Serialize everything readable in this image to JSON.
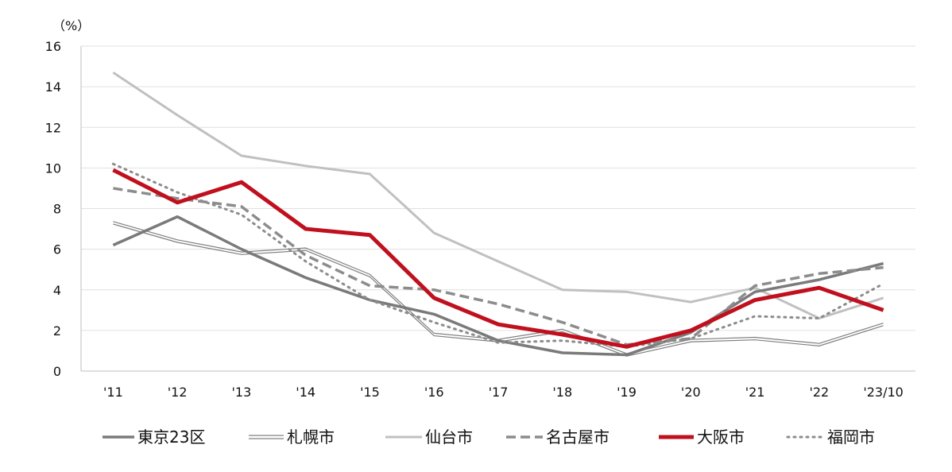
{
  "chart_data": {
    "type": "line",
    "title": "",
    "xlabel": "",
    "ylabel": "",
    "unit_label": "（%）",
    "categories": [
      "'11",
      "'12",
      "'13",
      "'14",
      "'15",
      "'16",
      "'17",
      "'18",
      "'19",
      "'20",
      "'21",
      "'22",
      "'23/10"
    ],
    "ylim": [
      0,
      16
    ],
    "yticks": [
      0,
      2,
      4,
      6,
      8,
      10,
      12,
      14,
      16
    ],
    "grid": true,
    "legend_position": "bottom",
    "series": [
      {
        "name": "東京23区",
        "color": "#7a7a7a",
        "style": "solid-thick",
        "values": [
          6.2,
          7.6,
          6.0,
          4.6,
          3.5,
          2.8,
          1.5,
          0.9,
          0.8,
          1.9,
          3.9,
          4.5,
          5.3
        ]
      },
      {
        "name": "札幌市",
        "color": "#808080",
        "style": "double",
        "values": [
          7.3,
          6.4,
          5.8,
          6.0,
          4.7,
          1.8,
          1.5,
          2.0,
          0.8,
          1.5,
          1.6,
          1.3,
          2.3
        ]
      },
      {
        "name": "仙台市",
        "color": "#c0c0c0",
        "style": "solid",
        "values": [
          14.7,
          12.6,
          10.6,
          10.1,
          9.7,
          6.8,
          5.4,
          4.0,
          3.9,
          3.4,
          4.1,
          2.6,
          3.6
        ]
      },
      {
        "name": "名古屋市",
        "color": "#8c8c8c",
        "style": "dashed",
        "values": [
          9.0,
          8.5,
          8.1,
          5.7,
          4.2,
          4.0,
          3.3,
          2.4,
          1.3,
          1.6,
          4.2,
          4.8,
          5.1
        ]
      },
      {
        "name": "大阪市",
        "color": "#c0101e",
        "style": "solid-bold",
        "values": [
          9.9,
          8.3,
          9.3,
          7.0,
          6.7,
          3.6,
          2.3,
          1.8,
          1.2,
          2.0,
          3.5,
          4.1,
          3.0
        ]
      },
      {
        "name": "福岡市",
        "color": "#8c8c8c",
        "style": "dotted",
        "values": [
          10.2,
          8.8,
          7.7,
          5.4,
          3.5,
          2.4,
          1.4,
          1.5,
          1.2,
          1.6,
          2.7,
          2.6,
          4.3
        ]
      }
    ]
  }
}
